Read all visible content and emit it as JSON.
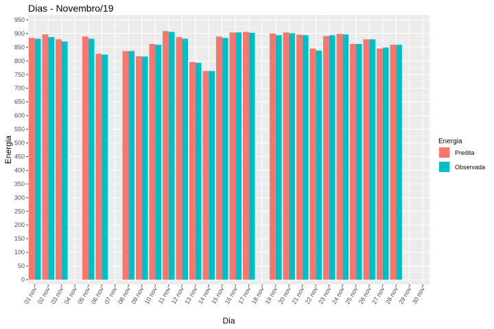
{
  "chart_data": {
    "type": "bar",
    "title": "Dias - Novembro/19",
    "xlabel": "Dia",
    "ylabel": "Energia",
    "ylim": [
      0,
      950
    ],
    "y_ticks": [
      0,
      50,
      100,
      150,
      200,
      250,
      300,
      350,
      400,
      450,
      500,
      550,
      600,
      650,
      700,
      750,
      800,
      850,
      900,
      950
    ],
    "categories": [
      "01 nov",
      "02 nov",
      "03 nov",
      "04 nov",
      "05 nov",
      "06 nov",
      "07 nov",
      "08 nov",
      "09 nov",
      "10 nov",
      "11 nov",
      "12 nov",
      "13 nov",
      "14 nov",
      "15 nov",
      "16 nov",
      "17 nov",
      "18 nov",
      "19 nov",
      "20 nov",
      "21 nov",
      "22 nov",
      "23 nov",
      "24 nov",
      "25 nov",
      "26 nov",
      "27 nov",
      "28 nov",
      "29 nov",
      "30 nov"
    ],
    "series": [
      {
        "name": "Predita",
        "color": "#F8766D",
        "values": [
          884,
          897,
          879,
          null,
          889,
          826,
          null,
          836,
          817,
          862,
          909,
          887,
          796,
          763,
          889,
          904,
          906,
          null,
          900,
          904,
          896,
          845,
          891,
          899,
          862,
          879,
          845,
          859,
          null,
          null
        ]
      },
      {
        "name": "Observada",
        "color": "#00BFC4",
        "values": [
          881,
          887,
          871,
          null,
          881,
          823,
          null,
          836,
          816,
          859,
          906,
          881,
          793,
          763,
          884,
          904,
          903,
          null,
          894,
          901,
          894,
          838,
          894,
          897,
          862,
          879,
          849,
          859,
          null,
          null
        ]
      }
    ],
    "grid": true,
    "legend": {
      "title": "Energia",
      "position": "right"
    }
  }
}
